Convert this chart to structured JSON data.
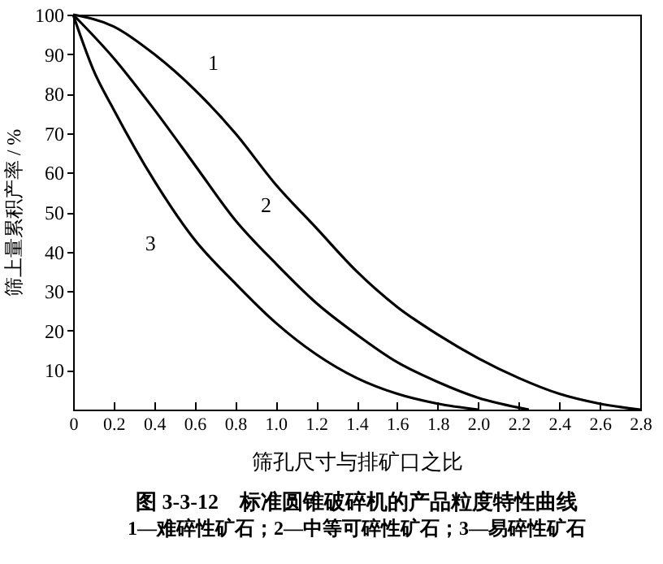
{
  "chart_data": {
    "type": "line",
    "title": "图 3-3-12　标准圆锥破碎机的产品粒度特性曲线",
    "subtitle": "1—难碎性矿石；2—中等可碎性矿石；3—易碎性矿石",
    "xlabel": "筛孔尺寸与排矿口之比",
    "ylabel": "筛上量累积产率 / %",
    "series": [
      {
        "color": "#000000",
        "x": [
          0,
          0.2,
          0.4,
          0.6,
          0.8,
          1.0,
          1.2,
          1.4,
          1.6,
          1.8,
          2.0,
          2.2,
          2.4,
          2.6,
          2.8
        ],
        "values": [
          100,
          97,
          90,
          81,
          70,
          57,
          46,
          35,
          26,
          19,
          13,
          8,
          4,
          1.5,
          0
        ]
      },
      {
        "color": "#000000",
        "x": [
          0,
          0.2,
          0.4,
          0.6,
          0.8,
          1.0,
          1.2,
          1.4,
          1.6,
          1.8,
          2.0,
          2.2,
          2.25
        ],
        "values": [
          100,
          89,
          76,
          62,
          48,
          37,
          27,
          19,
          12,
          7,
          3,
          0.5,
          0
        ]
      },
      {
        "color": "#000000",
        "x": [
          0,
          0.1,
          0.2,
          0.4,
          0.6,
          0.8,
          1.0,
          1.2,
          1.4,
          1.6,
          1.8,
          2.0
        ],
        "values": [
          100,
          86,
          76,
          58,
          43,
          32,
          22,
          14,
          8,
          4,
          1.5,
          0
        ]
      }
    ],
    "annotations": [
      {
        "text": "1",
        "x": 0.58,
        "y": 81
      },
      {
        "text": "2",
        "x": 0.84,
        "y": 45
      },
      {
        "text": "3",
        "x": 0.51,
        "y": 47
      }
    ],
    "xlim": [
      0,
      2.8
    ],
    "ylim": [
      0,
      100
    ],
    "xticks": [
      0,
      0.2,
      0.4,
      0.6,
      0.8,
      {
        "value": 1,
        "label": "1.0"
      },
      1.2,
      1.4,
      1.6,
      1.8,
      {
        "value": 2,
        "label": "2.0"
      },
      2.2,
      2.4,
      2.6,
      2.8
    ],
    "yticks": [
      10,
      20,
      30,
      40,
      50,
      60,
      70,
      80,
      90,
      100
    ],
    "grid": false,
    "marker": "none",
    "line_style": "solid"
  }
}
